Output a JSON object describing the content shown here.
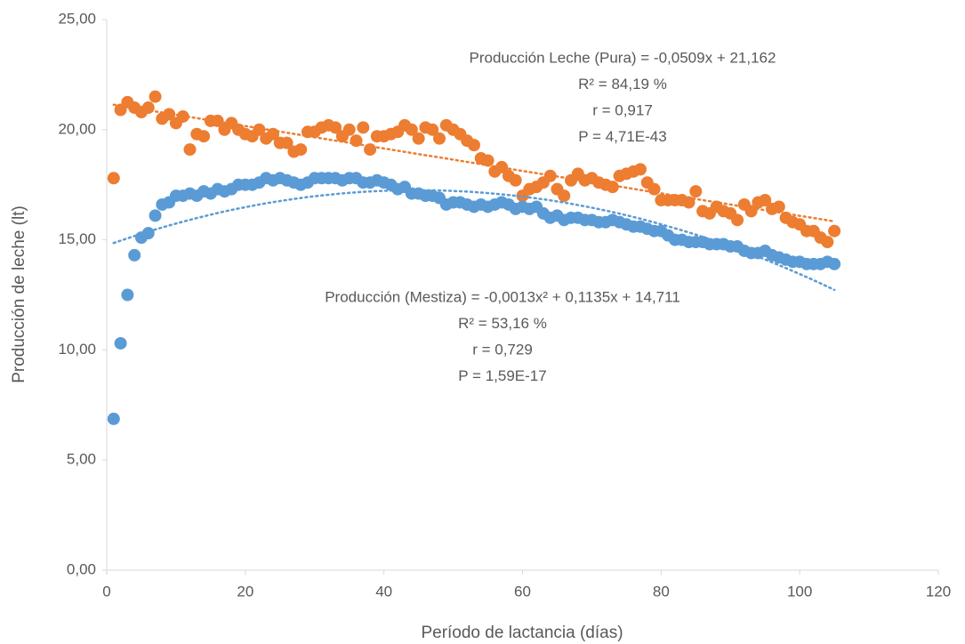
{
  "chart_data": {
    "type": "scatter",
    "xlabel": "Período de lactancia (días)",
    "ylabel": "Producción de leche (lt)",
    "xlim": [
      0,
      120
    ],
    "xticks": [
      0,
      20,
      40,
      60,
      80,
      100,
      120
    ],
    "ylim": [
      0,
      25
    ],
    "yticks": [
      {
        "value": 0,
        "label": "0,00"
      },
      {
        "value": 5,
        "label": "5,00"
      },
      {
        "value": 10,
        "label": "10,00"
      },
      {
        "value": 15,
        "label": "15,00"
      },
      {
        "value": 20,
        "label": "20,00"
      },
      {
        "value": 25,
        "label": "25,00"
      }
    ],
    "grid": false,
    "x": [
      1,
      2,
      3,
      4,
      5,
      6,
      7,
      8,
      9,
      10,
      11,
      12,
      13,
      14,
      15,
      16,
      17,
      18,
      19,
      20,
      21,
      22,
      23,
      24,
      25,
      26,
      27,
      28,
      29,
      30,
      31,
      32,
      33,
      34,
      35,
      36,
      37,
      38,
      39,
      40,
      41,
      42,
      43,
      44,
      45,
      46,
      47,
      48,
      49,
      50,
      51,
      52,
      53,
      54,
      55,
      56,
      57,
      58,
      59,
      60,
      61,
      62,
      63,
      64,
      65,
      66,
      67,
      68,
      69,
      70,
      71,
      72,
      73,
      74,
      75,
      76,
      77,
      78,
      79,
      80,
      81,
      82,
      83,
      84,
      85,
      86,
      87,
      88,
      89,
      90,
      91,
      92,
      93,
      94,
      95,
      96,
      97,
      98,
      99,
      100,
      101,
      102,
      103,
      104,
      105
    ],
    "series": [
      {
        "name": "Producción Leche (Pura)",
        "color": "#ed7d31",
        "trend": "linear",
        "values": [
          17.8,
          20.9,
          21.25,
          21.0,
          20.8,
          21.0,
          21.5,
          20.5,
          20.7,
          20.3,
          20.6,
          19.1,
          19.8,
          19.7,
          20.4,
          20.4,
          20.0,
          20.3,
          20.0,
          19.8,
          19.7,
          20.0,
          19.6,
          19.8,
          19.4,
          19.4,
          19.0,
          19.1,
          19.9,
          19.9,
          20.1,
          20.2,
          20.1,
          19.7,
          20.0,
          19.5,
          20.1,
          19.1,
          19.7,
          19.7,
          19.8,
          19.9,
          20.2,
          20.0,
          19.6,
          20.1,
          20.0,
          19.6,
          20.2,
          20.0,
          19.8,
          19.5,
          19.3,
          18.7,
          18.6,
          18.1,
          18.3,
          17.9,
          17.7,
          17.0,
          17.3,
          17.4,
          17.6,
          17.9,
          17.3,
          17.0,
          17.7,
          18.0,
          17.7,
          17.8,
          17.6,
          17.5,
          17.4,
          17.9,
          18.0,
          18.1,
          18.2,
          17.6,
          17.3,
          16.8,
          16.8,
          16.8,
          16.8,
          16.7,
          17.2,
          16.3,
          16.2,
          16.5,
          16.3,
          16.2,
          15.9,
          16.6,
          16.3,
          16.7,
          16.8,
          16.4,
          16.5,
          16.0,
          15.8,
          15.7,
          15.4,
          15.4,
          15.1,
          14.9,
          15.4
        ]
      },
      {
        "name": "Producción (Mestiza)",
        "color": "#5b9bd5",
        "trend": "quadratic",
        "values": [
          6.87,
          10.3,
          12.5,
          14.3,
          15.1,
          15.3,
          16.1,
          16.6,
          16.7,
          17.0,
          17.0,
          17.1,
          17.0,
          17.2,
          17.1,
          17.3,
          17.2,
          17.3,
          17.5,
          17.5,
          17.5,
          17.6,
          17.8,
          17.7,
          17.8,
          17.7,
          17.6,
          17.5,
          17.6,
          17.8,
          17.8,
          17.8,
          17.8,
          17.7,
          17.8,
          17.8,
          17.6,
          17.6,
          17.7,
          17.6,
          17.5,
          17.3,
          17.4,
          17.1,
          17.1,
          17.0,
          17.0,
          16.9,
          16.6,
          16.7,
          16.7,
          16.6,
          16.5,
          16.6,
          16.5,
          16.6,
          16.7,
          16.6,
          16.4,
          16.5,
          16.4,
          16.5,
          16.2,
          16.0,
          16.1,
          15.9,
          16.0,
          16.0,
          15.9,
          15.9,
          15.8,
          15.8,
          15.9,
          15.8,
          15.7,
          15.6,
          15.6,
          15.5,
          15.4,
          15.4,
          15.2,
          15.0,
          15.0,
          14.9,
          14.9,
          14.9,
          14.8,
          14.8,
          14.8,
          14.7,
          14.7,
          14.5,
          14.4,
          14.4,
          14.5,
          14.3,
          14.2,
          14.1,
          14.0,
          14.0,
          13.9,
          13.9,
          13.9,
          14.0,
          13.9
        ]
      }
    ],
    "annotations": [
      [
        "Producción Leche (Pura) = -0,0509x + 21,162",
        "R² = 84,19 %",
        "r = 0,917",
        "P = 4,71E-43"
      ],
      [
        "Producción (Mestiza) = -0,0013x² + 0,1135x + 14,711",
        "R² = 53,16 %",
        "r = 0,729",
        "P = 1,59E-17"
      ]
    ]
  }
}
